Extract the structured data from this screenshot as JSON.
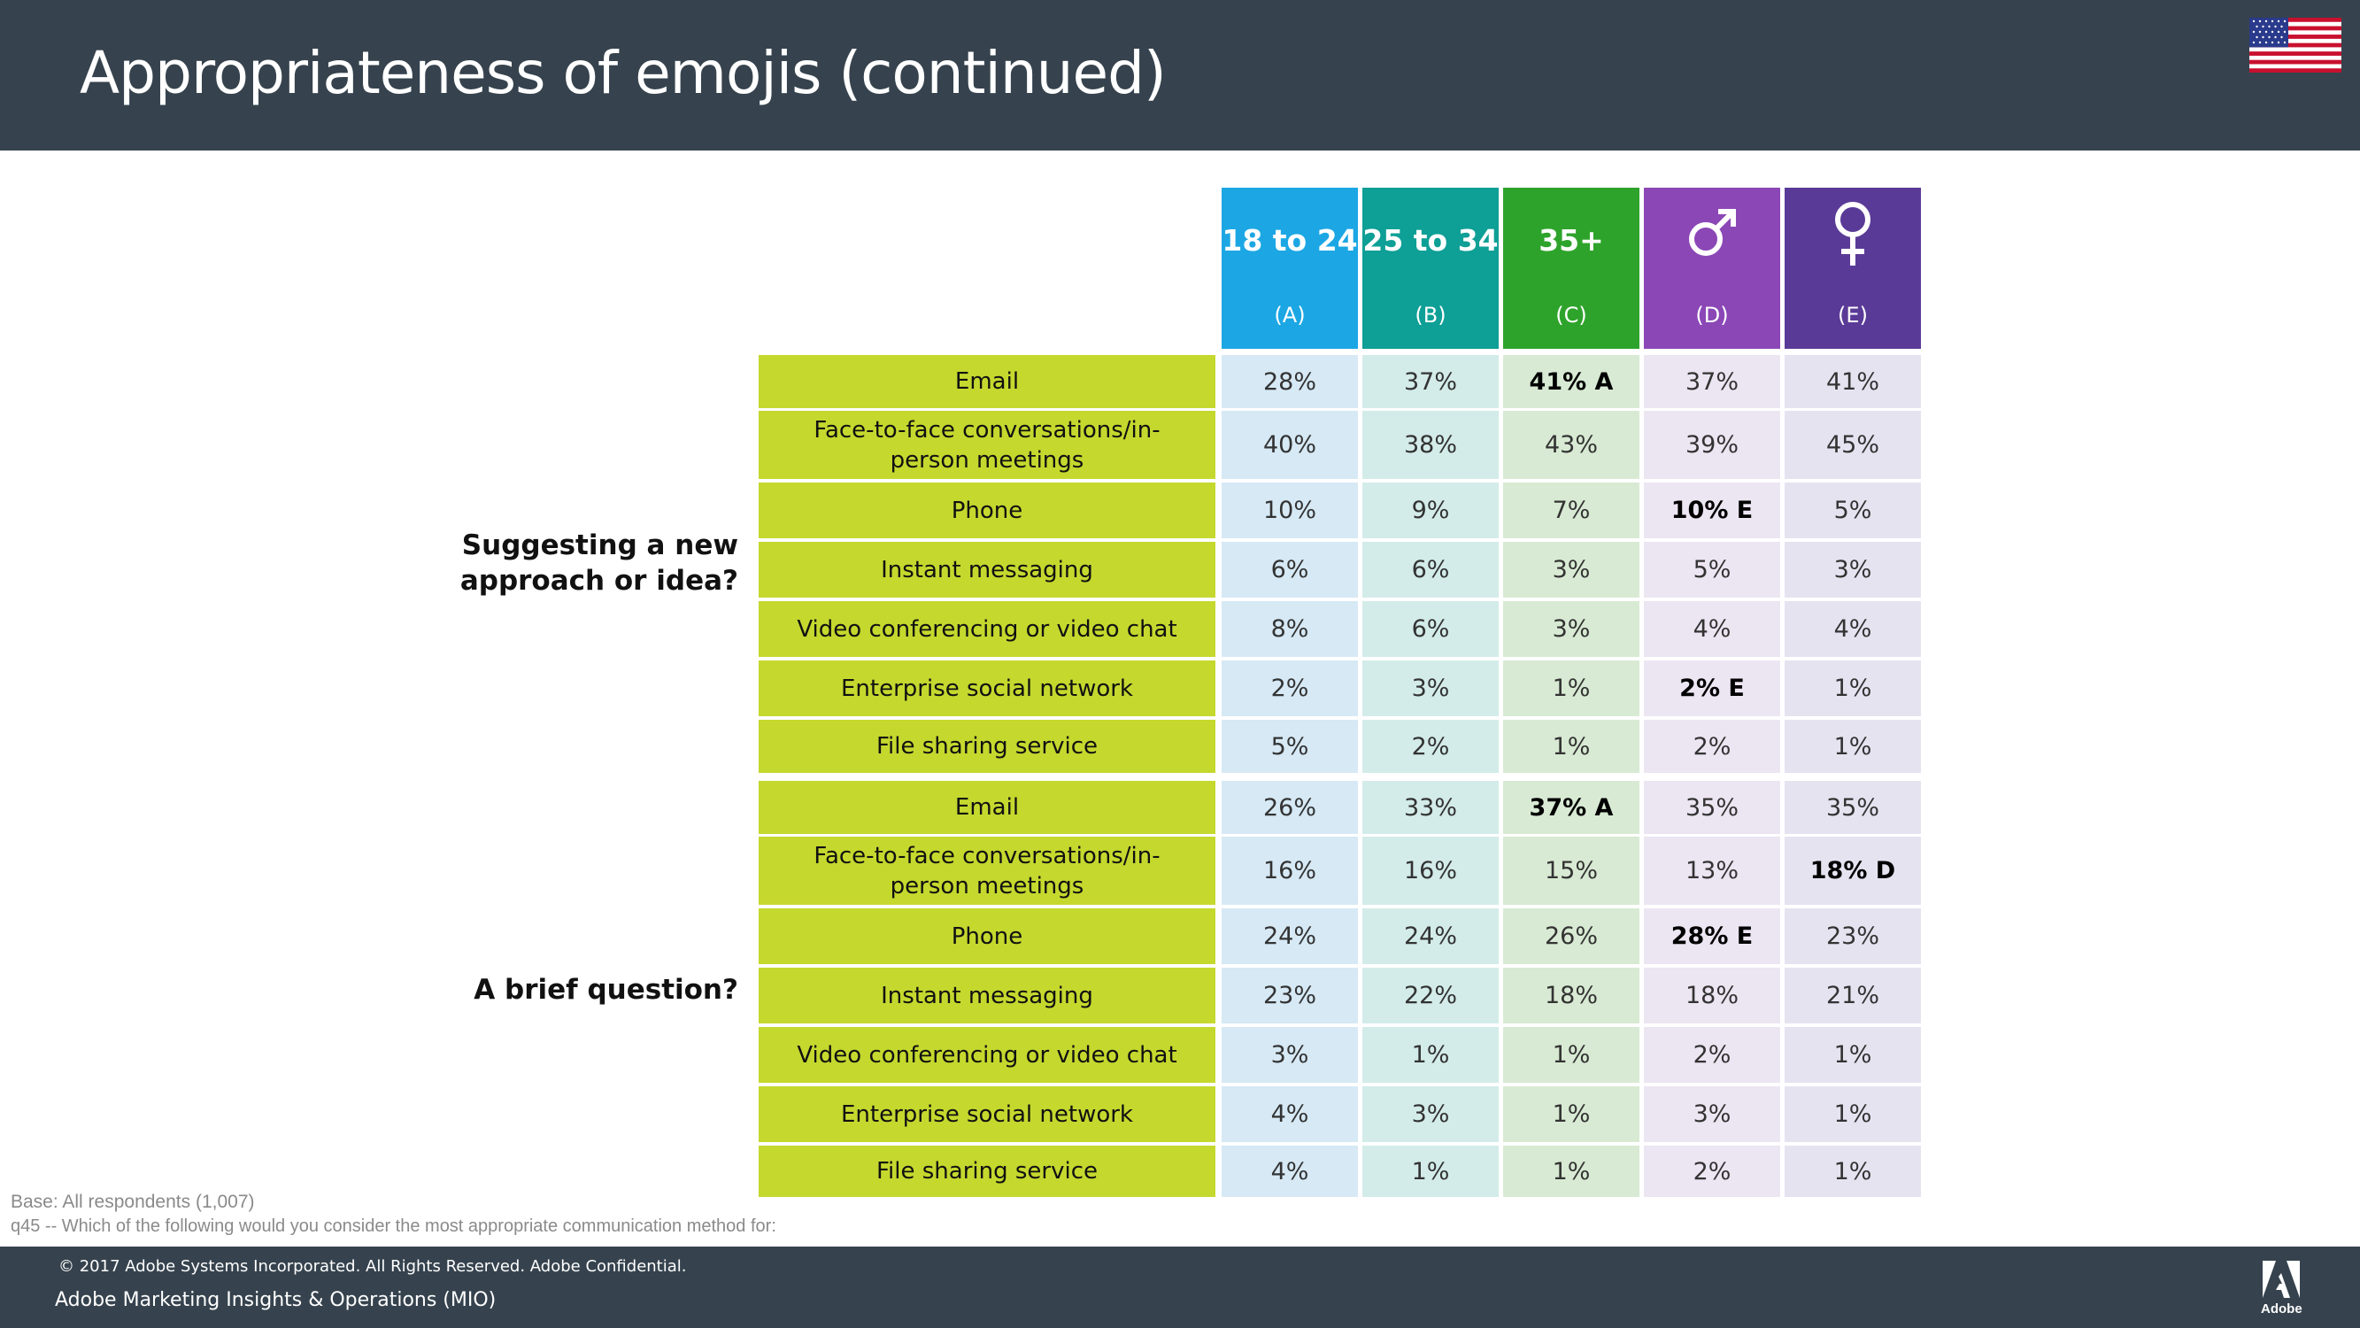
{
  "page": {
    "title": "Appropriateness of emojis (continued)",
    "base": "Base: All respondents (1,007)",
    "question": "q45 --  Which of the following would you consider the most appropriate communication method for:"
  },
  "columns": [
    {
      "label": "18 to 24",
      "code": "(A)",
      "color": "#1ca7e4"
    },
    {
      "label": "25 to 34",
      "code": "(B)",
      "color": "#0e9f96"
    },
    {
      "label": "35+",
      "code": "(C)",
      "color": "#2ea32b"
    },
    {
      "label": "",
      "icon": "male-icon",
      "code": "(D)",
      "color": "#8b47b6"
    },
    {
      "label": "",
      "icon": "female-icon",
      "code": "(E)",
      "color": "#5a3a97"
    }
  ],
  "sections": [
    {
      "title": "Suggesting a new approach or idea?",
      "title_lines": [
        "Suggesting a new",
        "approach or idea?"
      ],
      "rows": [
        {
          "label": "Email",
          "values": [
            "28%",
            "37%",
            "41% A",
            "37%",
            "41%"
          ],
          "bold": [
            2
          ]
        },
        {
          "label": "Face-to-face conversations/in-person meetings",
          "values": [
            "40%",
            "38%",
            "43%",
            "39%",
            "45%"
          ],
          "bold": []
        },
        {
          "label": "Phone",
          "values": [
            "10%",
            "9%",
            "7%",
            "10% E",
            "5%"
          ],
          "bold": [
            3
          ]
        },
        {
          "label": "Instant messaging",
          "values": [
            "6%",
            "6%",
            "3%",
            "5%",
            "3%"
          ],
          "bold": []
        },
        {
          "label": "Video conferencing or video chat",
          "values": [
            "8%",
            "6%",
            "3%",
            "4%",
            "4%"
          ],
          "bold": []
        },
        {
          "label": "Enterprise social network",
          "values": [
            "2%",
            "3%",
            "1%",
            "2% E",
            "1%"
          ],
          "bold": [
            3
          ]
        },
        {
          "label": "File sharing service",
          "values": [
            "5%",
            "2%",
            "1%",
            "2%",
            "1%"
          ],
          "bold": []
        }
      ]
    },
    {
      "title": "A brief question?",
      "title_lines": [
        "A brief question?"
      ],
      "rows": [
        {
          "label": "Email",
          "values": [
            "26%",
            "33%",
            "37% A",
            "35%",
            "35%"
          ],
          "bold": [
            2
          ]
        },
        {
          "label": "Face-to-face conversations/in-person meetings",
          "values": [
            "16%",
            "16%",
            "15%",
            "13%",
            "18% D"
          ],
          "bold": [
            4
          ]
        },
        {
          "label": "Phone",
          "values": [
            "24%",
            "24%",
            "26%",
            "28% E",
            "23%"
          ],
          "bold": [
            3
          ]
        },
        {
          "label": "Instant messaging",
          "values": [
            "23%",
            "22%",
            "18%",
            "18%",
            "21%"
          ],
          "bold": []
        },
        {
          "label": "Video conferencing or video chat",
          "values": [
            "3%",
            "1%",
            "1%",
            "2%",
            "1%"
          ],
          "bold": []
        },
        {
          "label": "Enterprise social network",
          "values": [
            "4%",
            "3%",
            "1%",
            "3%",
            "1%"
          ],
          "bold": []
        },
        {
          "label": "File sharing service",
          "values": [
            "4%",
            "1%",
            "1%",
            "2%",
            "1%"
          ],
          "bold": []
        }
      ]
    }
  ],
  "cell_colors": [
    "#d6e9f5",
    "#d3ece9",
    "#d8ead3",
    "#ece5f2",
    "#e6e3f1"
  ],
  "footer": {
    "copyright": "© 2017 Adobe Systems Incorporated.  All Rights Reserved.  Adobe Confidential.",
    "org": "Adobe Marketing Insights & Operations (MIO)",
    "logo_text": "Adobe"
  }
}
